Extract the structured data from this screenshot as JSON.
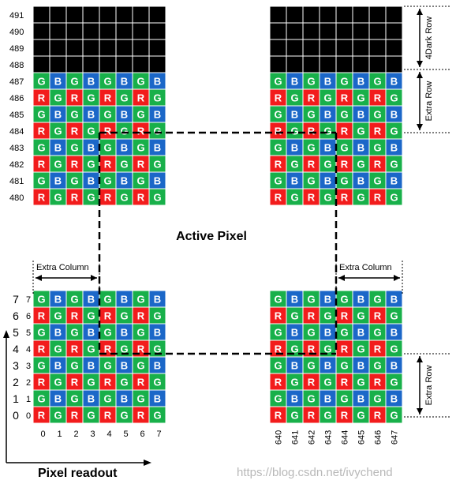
{
  "colors": {
    "R": "#f21c1c",
    "G": "#18b04a",
    "B": "#1b67c8",
    "dark": "#000000",
    "grid": "#ffffff",
    "dash": "#000000"
  },
  "dark_rows": [
    "491",
    "490",
    "489",
    "488"
  ],
  "top_rows": [
    "487",
    "486",
    "485",
    "484",
    "483",
    "482",
    "481",
    "480"
  ],
  "bottom_rows_big": [
    "7",
    "6",
    "5",
    "4",
    "3",
    "2",
    "1",
    "0"
  ],
  "bottom_rows_small": [
    "7",
    "6",
    "5",
    "4",
    "3",
    "2",
    "1",
    "0"
  ],
  "pattern": {
    "gb_row": [
      "G",
      "B",
      "G",
      "B",
      "G",
      "B",
      "G",
      "B"
    ],
    "rg_row": [
      "R",
      "G",
      "R",
      "G",
      "R",
      "G",
      "R",
      "G"
    ]
  },
  "columns_left": [
    "0",
    "1",
    "2",
    "3",
    "4",
    "5",
    "6",
    "7"
  ],
  "columns_right": [
    "640",
    "641",
    "642",
    "643",
    "644",
    "645",
    "646",
    "647"
  ],
  "labels": {
    "active_pixel": "Active Pixel",
    "extra_column_left": "Extra Column",
    "extra_column_right": "Extra Column",
    "dark_row": "4Dark Row",
    "extra_row_top": "Extra Row",
    "extra_row_bottom": "Extra Row",
    "pixel_readout": "Pixel readout",
    "watermark": "https://blog.csdn.net/ivychend"
  }
}
